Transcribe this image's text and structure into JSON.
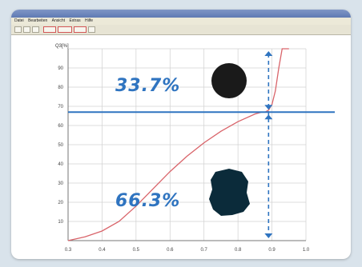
{
  "menubar": {
    "items": [
      "Datei",
      "Bearbeiten",
      "Ansicht",
      "Extras",
      "Hilfe"
    ]
  },
  "toolbar": {
    "buttons": [
      "open",
      "save",
      "print",
      "zoom",
      "measure",
      "export",
      "help"
    ]
  },
  "chart_data": {
    "type": "line",
    "ylabel": "Q3[%]",
    "yticks": [
      "10",
      "20",
      "30",
      "40",
      "50",
      "60",
      "70",
      "80",
      "90"
    ],
    "xticks": [
      "0.3",
      "0.4",
      "0.5",
      "0.6",
      "0.7",
      "0.8",
      "0.9",
      "1.0"
    ],
    "xlim": [
      0.3,
      1.0
    ],
    "ylim": [
      0,
      100
    ],
    "grid": true,
    "series": [
      {
        "color": "#d9646a",
        "x": [
          0.3,
          0.35,
          0.4,
          0.45,
          0.5,
          0.55,
          0.6,
          0.65,
          0.7,
          0.75,
          0.8,
          0.85,
          0.87,
          0.88,
          0.89,
          0.9,
          0.91,
          0.92,
          0.93,
          0.94,
          0.95
        ],
        "y": [
          0,
          2,
          5,
          10,
          18,
          27,
          36,
          44,
          51,
          57,
          62,
          66,
          67,
          67,
          68,
          71,
          78,
          90,
          100,
          100,
          100
        ]
      }
    ],
    "threshold_y": 67,
    "threshold_x": 0.89,
    "annotations": {
      "upper": "33.7%",
      "lower": "66.3%"
    },
    "colors": {
      "threshold": "#2f74c0",
      "curve": "#d9646a",
      "shape": "#1a1a1a",
      "shape2": "#0b2b3a"
    }
  }
}
